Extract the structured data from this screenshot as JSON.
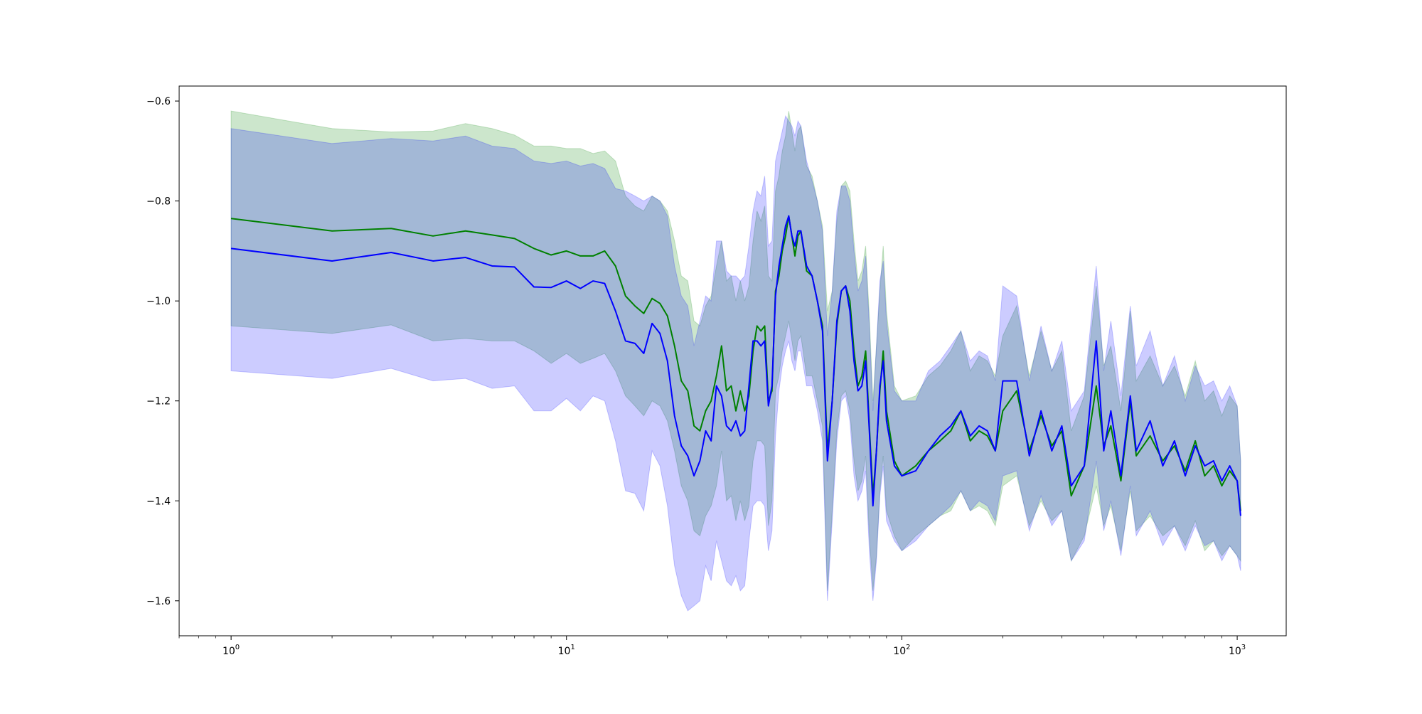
{
  "chart_data": {
    "type": "line",
    "title": "",
    "xlabel": "",
    "ylabel": "",
    "xscale": "log",
    "xlim": [
      0.7,
      1400
    ],
    "ylim": [
      -1.67,
      -0.57
    ],
    "grid": false,
    "legend": "none",
    "x_ticks": [
      {
        "value": 1,
        "base": "10",
        "exp": "0"
      },
      {
        "value": 10,
        "base": "10",
        "exp": "1"
      },
      {
        "value": 100,
        "base": "10",
        "exp": "2"
      },
      {
        "value": 1000,
        "base": "10",
        "exp": "3"
      }
    ],
    "y_ticks": [
      {
        "value": -0.6,
        "label": "−0.6"
      },
      {
        "value": -0.8,
        "label": "−0.8"
      },
      {
        "value": -1.0,
        "label": "−1.0"
      },
      {
        "value": -1.2,
        "label": "−1.2"
      },
      {
        "value": -1.4,
        "label": "−1.4"
      },
      {
        "value": -1.6,
        "label": "−1.6"
      }
    ],
    "series": [
      {
        "color": "#008000",
        "band_color": "#008000",
        "band_opacity": 0.2,
        "x": [
          1,
          2,
          3,
          4,
          5,
          6,
          7,
          8,
          9,
          10,
          11,
          12,
          13,
          14,
          15,
          16,
          17,
          18,
          19,
          20,
          21,
          22,
          23,
          24,
          25,
          26,
          27,
          28,
          29,
          30,
          31,
          32,
          33,
          34,
          35,
          36,
          37,
          38,
          39,
          40,
          41,
          42,
          43,
          44,
          45,
          46,
          47,
          48,
          49,
          50,
          52,
          54,
          56,
          58,
          60,
          62,
          64,
          66,
          68,
          70,
          72,
          74,
          76,
          78,
          80,
          82,
          84,
          86,
          88,
          90,
          95,
          100,
          110,
          120,
          130,
          140,
          150,
          160,
          170,
          180,
          190,
          200,
          220,
          240,
          260,
          280,
          300,
          320,
          350,
          380,
          400,
          420,
          450,
          480,
          500,
          550,
          600,
          650,
          700,
          750,
          800,
          850,
          900,
          950,
          1000,
          1024
        ],
        "y": [
          -0.835,
          -0.86,
          -0.855,
          -0.87,
          -0.86,
          -0.868,
          -0.875,
          -0.895,
          -0.908,
          -0.9,
          -0.91,
          -0.91,
          -0.9,
          -0.93,
          -0.99,
          -1.01,
          -1.025,
          -0.995,
          -1.005,
          -1.03,
          -1.09,
          -1.16,
          -1.18,
          -1.25,
          -1.26,
          -1.22,
          -1.2,
          -1.15,
          -1.09,
          -1.18,
          -1.17,
          -1.22,
          -1.18,
          -1.22,
          -1.19,
          -1.1,
          -1.05,
          -1.06,
          -1.05,
          -1.2,
          -1.18,
          -0.98,
          -0.95,
          -0.9,
          -0.87,
          -0.83,
          -0.87,
          -0.91,
          -0.87,
          -0.86,
          -0.94,
          -0.95,
          -1.0,
          -1.05,
          -1.3,
          -1.2,
          -1.05,
          -0.98,
          -0.97,
          -1.0,
          -1.1,
          -1.17,
          -1.15,
          -1.1,
          -1.25,
          -1.39,
          -1.3,
          -1.18,
          -1.1,
          -1.22,
          -1.32,
          -1.35,
          -1.33,
          -1.3,
          -1.28,
          -1.26,
          -1.22,
          -1.28,
          -1.26,
          -1.27,
          -1.3,
          -1.22,
          -1.18,
          -1.3,
          -1.23,
          -1.29,
          -1.26,
          -1.39,
          -1.33,
          -1.17,
          -1.29,
          -1.25,
          -1.36,
          -1.2,
          -1.31,
          -1.27,
          -1.32,
          -1.29,
          -1.34,
          -1.28,
          -1.35,
          -1.33,
          -1.37,
          -1.34,
          -1.36,
          -1.42
        ],
        "lower": [
          -1.05,
          -1.065,
          -1.048,
          -1.08,
          -1.075,
          -1.08,
          -1.08,
          -1.1,
          -1.125,
          -1.105,
          -1.125,
          -1.115,
          -1.105,
          -1.14,
          -1.19,
          -1.21,
          -1.23,
          -1.2,
          -1.21,
          -1.24,
          -1.3,
          -1.37,
          -1.4,
          -1.46,
          -1.47,
          -1.43,
          -1.41,
          -1.37,
          -1.3,
          -1.4,
          -1.39,
          -1.44,
          -1.4,
          -1.44,
          -1.41,
          -1.32,
          -1.28,
          -1.28,
          -1.29,
          -1.45,
          -1.4,
          -1.18,
          -1.15,
          -1.1,
          -1.07,
          -1.04,
          -1.08,
          -1.12,
          -1.08,
          -1.07,
          -1.15,
          -1.15,
          -1.2,
          -1.25,
          -1.58,
          -1.42,
          -1.26,
          -1.19,
          -1.18,
          -1.22,
          -1.32,
          -1.38,
          -1.36,
          -1.31,
          -1.47,
          -1.58,
          -1.51,
          -1.38,
          -1.31,
          -1.42,
          -1.47,
          -1.5,
          -1.47,
          -1.45,
          -1.43,
          -1.42,
          -1.38,
          -1.42,
          -1.41,
          -1.42,
          -1.45,
          -1.37,
          -1.35,
          -1.45,
          -1.4,
          -1.44,
          -1.42,
          -1.52,
          -1.47,
          -1.37,
          -1.45,
          -1.41,
          -1.5,
          -1.38,
          -1.46,
          -1.43,
          -1.47,
          -1.45,
          -1.49,
          -1.44,
          -1.5,
          -1.48,
          -1.51,
          -1.49,
          -1.51,
          -1.52
        ],
        "upper": [
          -0.62,
          -0.655,
          -0.662,
          -0.66,
          -0.645,
          -0.655,
          -0.668,
          -0.69,
          -0.69,
          -0.695,
          -0.695,
          -0.705,
          -0.7,
          -0.72,
          -0.79,
          -0.81,
          -0.82,
          -0.79,
          -0.8,
          -0.82,
          -0.88,
          -0.95,
          -0.96,
          -1.04,
          -1.05,
          -1.01,
          -0.99,
          -0.93,
          -0.88,
          -0.96,
          -0.95,
          -1.0,
          -0.96,
          -1.0,
          -0.97,
          -0.88,
          -0.82,
          -0.84,
          -0.81,
          -0.95,
          -0.96,
          -0.78,
          -0.75,
          -0.7,
          -0.67,
          -0.62,
          -0.66,
          -0.7,
          -0.66,
          -0.65,
          -0.73,
          -0.75,
          -0.8,
          -0.85,
          -1.02,
          -0.98,
          -0.84,
          -0.77,
          -0.76,
          -0.78,
          -0.88,
          -0.96,
          -0.94,
          -0.89,
          -1.03,
          -1.2,
          -1.09,
          -0.98,
          -0.89,
          -1.02,
          -1.17,
          -1.2,
          -1.19,
          -1.15,
          -1.13,
          -1.1,
          -1.06,
          -1.14,
          -1.11,
          -1.12,
          -1.15,
          -1.07,
          -1.01,
          -1.15,
          -1.06,
          -1.14,
          -1.1,
          -1.26,
          -1.19,
          -0.97,
          -1.13,
          -1.09,
          -1.22,
          -1.02,
          -1.16,
          -1.11,
          -1.17,
          -1.13,
          -1.19,
          -1.12,
          -1.2,
          -1.18,
          -1.23,
          -1.19,
          -1.21,
          -1.32
        ]
      },
      {
        "color": "#0000ff",
        "band_color": "#0000ff",
        "band_opacity": 0.2,
        "x": [
          1,
          2,
          3,
          4,
          5,
          6,
          7,
          8,
          9,
          10,
          11,
          12,
          13,
          14,
          15,
          16,
          17,
          18,
          19,
          20,
          21,
          22,
          23,
          24,
          25,
          26,
          27,
          28,
          29,
          30,
          31,
          32,
          33,
          34,
          35,
          36,
          37,
          38,
          39,
          40,
          41,
          42,
          43,
          44,
          45,
          46,
          47,
          48,
          49,
          50,
          52,
          54,
          56,
          58,
          60,
          62,
          64,
          66,
          68,
          70,
          72,
          74,
          76,
          78,
          80,
          82,
          84,
          86,
          88,
          90,
          95,
          100,
          110,
          120,
          130,
          140,
          150,
          160,
          170,
          180,
          190,
          200,
          220,
          240,
          260,
          280,
          300,
          320,
          350,
          380,
          400,
          420,
          450,
          480,
          500,
          550,
          600,
          650,
          700,
          750,
          800,
          850,
          900,
          950,
          1000,
          1024
        ],
        "y": [
          -0.895,
          -0.92,
          -0.903,
          -0.92,
          -0.913,
          -0.93,
          -0.932,
          -0.972,
          -0.973,
          -0.96,
          -0.975,
          -0.96,
          -0.965,
          -1.02,
          -1.08,
          -1.085,
          -1.105,
          -1.045,
          -1.065,
          -1.12,
          -1.23,
          -1.29,
          -1.31,
          -1.35,
          -1.32,
          -1.26,
          -1.28,
          -1.17,
          -1.19,
          -1.25,
          -1.26,
          -1.24,
          -1.27,
          -1.26,
          -1.17,
          -1.08,
          -1.08,
          -1.09,
          -1.08,
          -1.21,
          -1.17,
          -0.99,
          -0.93,
          -0.89,
          -0.85,
          -0.83,
          -0.87,
          -0.89,
          -0.86,
          -0.86,
          -0.93,
          -0.95,
          -1.0,
          -1.06,
          -1.32,
          -1.2,
          -1.04,
          -0.98,
          -0.97,
          -1.02,
          -1.12,
          -1.18,
          -1.17,
          -1.12,
          -1.26,
          -1.41,
          -1.3,
          -1.17,
          -1.12,
          -1.24,
          -1.33,
          -1.35,
          -1.34,
          -1.3,
          -1.27,
          -1.25,
          -1.22,
          -1.27,
          -1.25,
          -1.26,
          -1.3,
          -1.16,
          -1.16,
          -1.31,
          -1.22,
          -1.3,
          -1.25,
          -1.37,
          -1.33,
          -1.08,
          -1.3,
          -1.22,
          -1.35,
          -1.19,
          -1.3,
          -1.24,
          -1.33,
          -1.28,
          -1.35,
          -1.29,
          -1.33,
          -1.32,
          -1.36,
          -1.33,
          -1.36,
          -1.43
        ],
        "lower": [
          -1.14,
          -1.155,
          -1.135,
          -1.16,
          -1.155,
          -1.175,
          -1.17,
          -1.22,
          -1.22,
          -1.195,
          -1.22,
          -1.19,
          -1.2,
          -1.28,
          -1.38,
          -1.385,
          -1.42,
          -1.3,
          -1.33,
          -1.41,
          -1.53,
          -1.59,
          -1.62,
          -1.61,
          -1.6,
          -1.53,
          -1.56,
          -1.48,
          -1.52,
          -1.56,
          -1.57,
          -1.55,
          -1.58,
          -1.57,
          -1.48,
          -1.41,
          -1.4,
          -1.4,
          -1.41,
          -1.5,
          -1.46,
          -1.27,
          -1.18,
          -1.13,
          -1.1,
          -1.08,
          -1.12,
          -1.14,
          -1.1,
          -1.1,
          -1.17,
          -1.17,
          -1.22,
          -1.28,
          -1.6,
          -1.44,
          -1.28,
          -1.2,
          -1.19,
          -1.24,
          -1.35,
          -1.4,
          -1.38,
          -1.34,
          -1.5,
          -1.6,
          -1.52,
          -1.39,
          -1.33,
          -1.44,
          -1.48,
          -1.5,
          -1.48,
          -1.45,
          -1.43,
          -1.41,
          -1.38,
          -1.42,
          -1.4,
          -1.41,
          -1.44,
          -1.35,
          -1.34,
          -1.46,
          -1.39,
          -1.45,
          -1.42,
          -1.52,
          -1.48,
          -1.32,
          -1.46,
          -1.4,
          -1.51,
          -1.37,
          -1.47,
          -1.42,
          -1.49,
          -1.45,
          -1.5,
          -1.45,
          -1.49,
          -1.48,
          -1.52,
          -1.49,
          -1.51,
          -1.54
        ],
        "upper": [
          -0.655,
          -0.685,
          -0.675,
          -0.68,
          -0.67,
          -0.69,
          -0.695,
          -0.72,
          -0.725,
          -0.72,
          -0.73,
          -0.725,
          -0.735,
          -0.775,
          -0.78,
          -0.79,
          -0.8,
          -0.79,
          -0.8,
          -0.83,
          -0.93,
          -0.99,
          -1.01,
          -1.09,
          -1.04,
          -0.99,
          -1.0,
          -0.88,
          -0.88,
          -0.94,
          -0.95,
          -0.95,
          -0.96,
          -0.95,
          -0.89,
          -0.82,
          -0.78,
          -0.79,
          -0.75,
          -0.89,
          -0.88,
          -0.72,
          -0.69,
          -0.66,
          -0.63,
          -0.64,
          -0.65,
          -0.67,
          -0.64,
          -0.65,
          -0.72,
          -0.76,
          -0.8,
          -0.86,
          -1.07,
          -0.98,
          -0.82,
          -0.77,
          -0.77,
          -0.8,
          -0.9,
          -0.98,
          -0.96,
          -0.91,
          -1.05,
          -1.22,
          -1.09,
          -0.96,
          -0.92,
          -1.04,
          -1.18,
          -1.2,
          -1.2,
          -1.14,
          -1.12,
          -1.09,
          -1.06,
          -1.12,
          -1.1,
          -1.11,
          -1.16,
          -0.97,
          -0.99,
          -1.16,
          -1.05,
          -1.14,
          -1.08,
          -1.22,
          -1.18,
          -0.93,
          -1.14,
          -1.04,
          -1.19,
          -1.01,
          -1.13,
          -1.06,
          -1.17,
          -1.11,
          -1.2,
          -1.13,
          -1.17,
          -1.16,
          -1.2,
          -1.17,
          -1.21,
          -1.32
        ]
      }
    ]
  }
}
